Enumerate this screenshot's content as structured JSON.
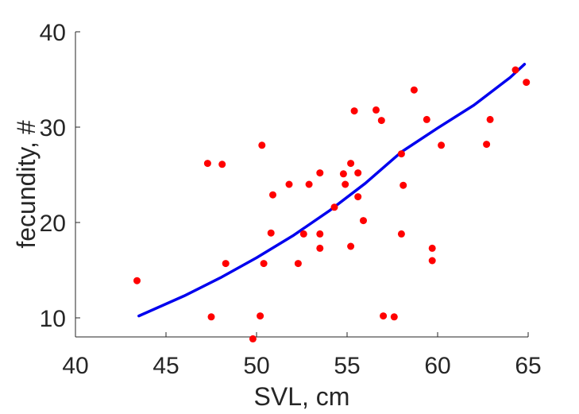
{
  "chart_data": {
    "type": "scatter",
    "xlabel": "SVL, cm",
    "ylabel": "fecundity, #",
    "xlim": [
      40,
      65
    ],
    "ylim": [
      8,
      40
    ],
    "xticks": [
      "40",
      "45",
      "50",
      "55",
      "60",
      "65"
    ],
    "yticks": [
      "10",
      "20",
      "30",
      "40"
    ],
    "grid": false,
    "colors": {
      "points": "#ff0000",
      "fit": "#0000ee",
      "axis": "#262626"
    },
    "series": [
      {
        "type": "scatter",
        "points": [
          [
            43.4,
            13.9
          ],
          [
            47.3,
            26.2
          ],
          [
            47.5,
            10.1
          ],
          [
            48.1,
            26.1
          ],
          [
            48.3,
            15.7
          ],
          [
            49.8,
            7.8
          ],
          [
            50.2,
            10.2
          ],
          [
            50.3,
            28.1
          ],
          [
            50.4,
            15.7
          ],
          [
            50.8,
            18.9
          ],
          [
            50.9,
            22.9
          ],
          [
            51.8,
            24.0
          ],
          [
            52.3,
            15.7
          ],
          [
            52.6,
            18.8
          ],
          [
            52.9,
            24.0
          ],
          [
            53.5,
            17.3
          ],
          [
            53.5,
            18.8
          ],
          [
            53.5,
            25.2
          ],
          [
            54.3,
            21.6
          ],
          [
            54.8,
            25.1
          ],
          [
            54.9,
            24.0
          ],
          [
            55.2,
            17.5
          ],
          [
            55.2,
            26.2
          ],
          [
            55.4,
            31.7
          ],
          [
            55.6,
            25.2
          ],
          [
            55.6,
            22.7
          ],
          [
            55.9,
            20.2
          ],
          [
            56.6,
            31.8
          ],
          [
            56.9,
            30.7
          ],
          [
            57.0,
            10.2
          ],
          [
            57.6,
            10.1
          ],
          [
            58.0,
            18.8
          ],
          [
            58.0,
            27.2
          ],
          [
            58.1,
            23.9
          ],
          [
            58.7,
            33.9
          ],
          [
            59.4,
            30.8
          ],
          [
            59.7,
            16.0
          ],
          [
            59.7,
            17.3
          ],
          [
            60.2,
            28.1
          ],
          [
            62.7,
            28.2
          ],
          [
            62.9,
            30.8
          ],
          [
            64.3,
            36.0
          ],
          [
            64.9,
            34.7
          ]
        ]
      },
      {
        "type": "line",
        "points": [
          [
            43.5,
            10.2
          ],
          [
            46,
            12.3
          ],
          [
            48,
            14.2
          ],
          [
            50,
            16.3
          ],
          [
            52,
            18.6
          ],
          [
            54,
            21.2
          ],
          [
            56,
            24.1
          ],
          [
            58,
            27.4
          ],
          [
            60,
            29.9
          ],
          [
            62,
            32.3
          ],
          [
            64,
            35.2
          ],
          [
            64.8,
            36.6
          ]
        ]
      }
    ]
  }
}
